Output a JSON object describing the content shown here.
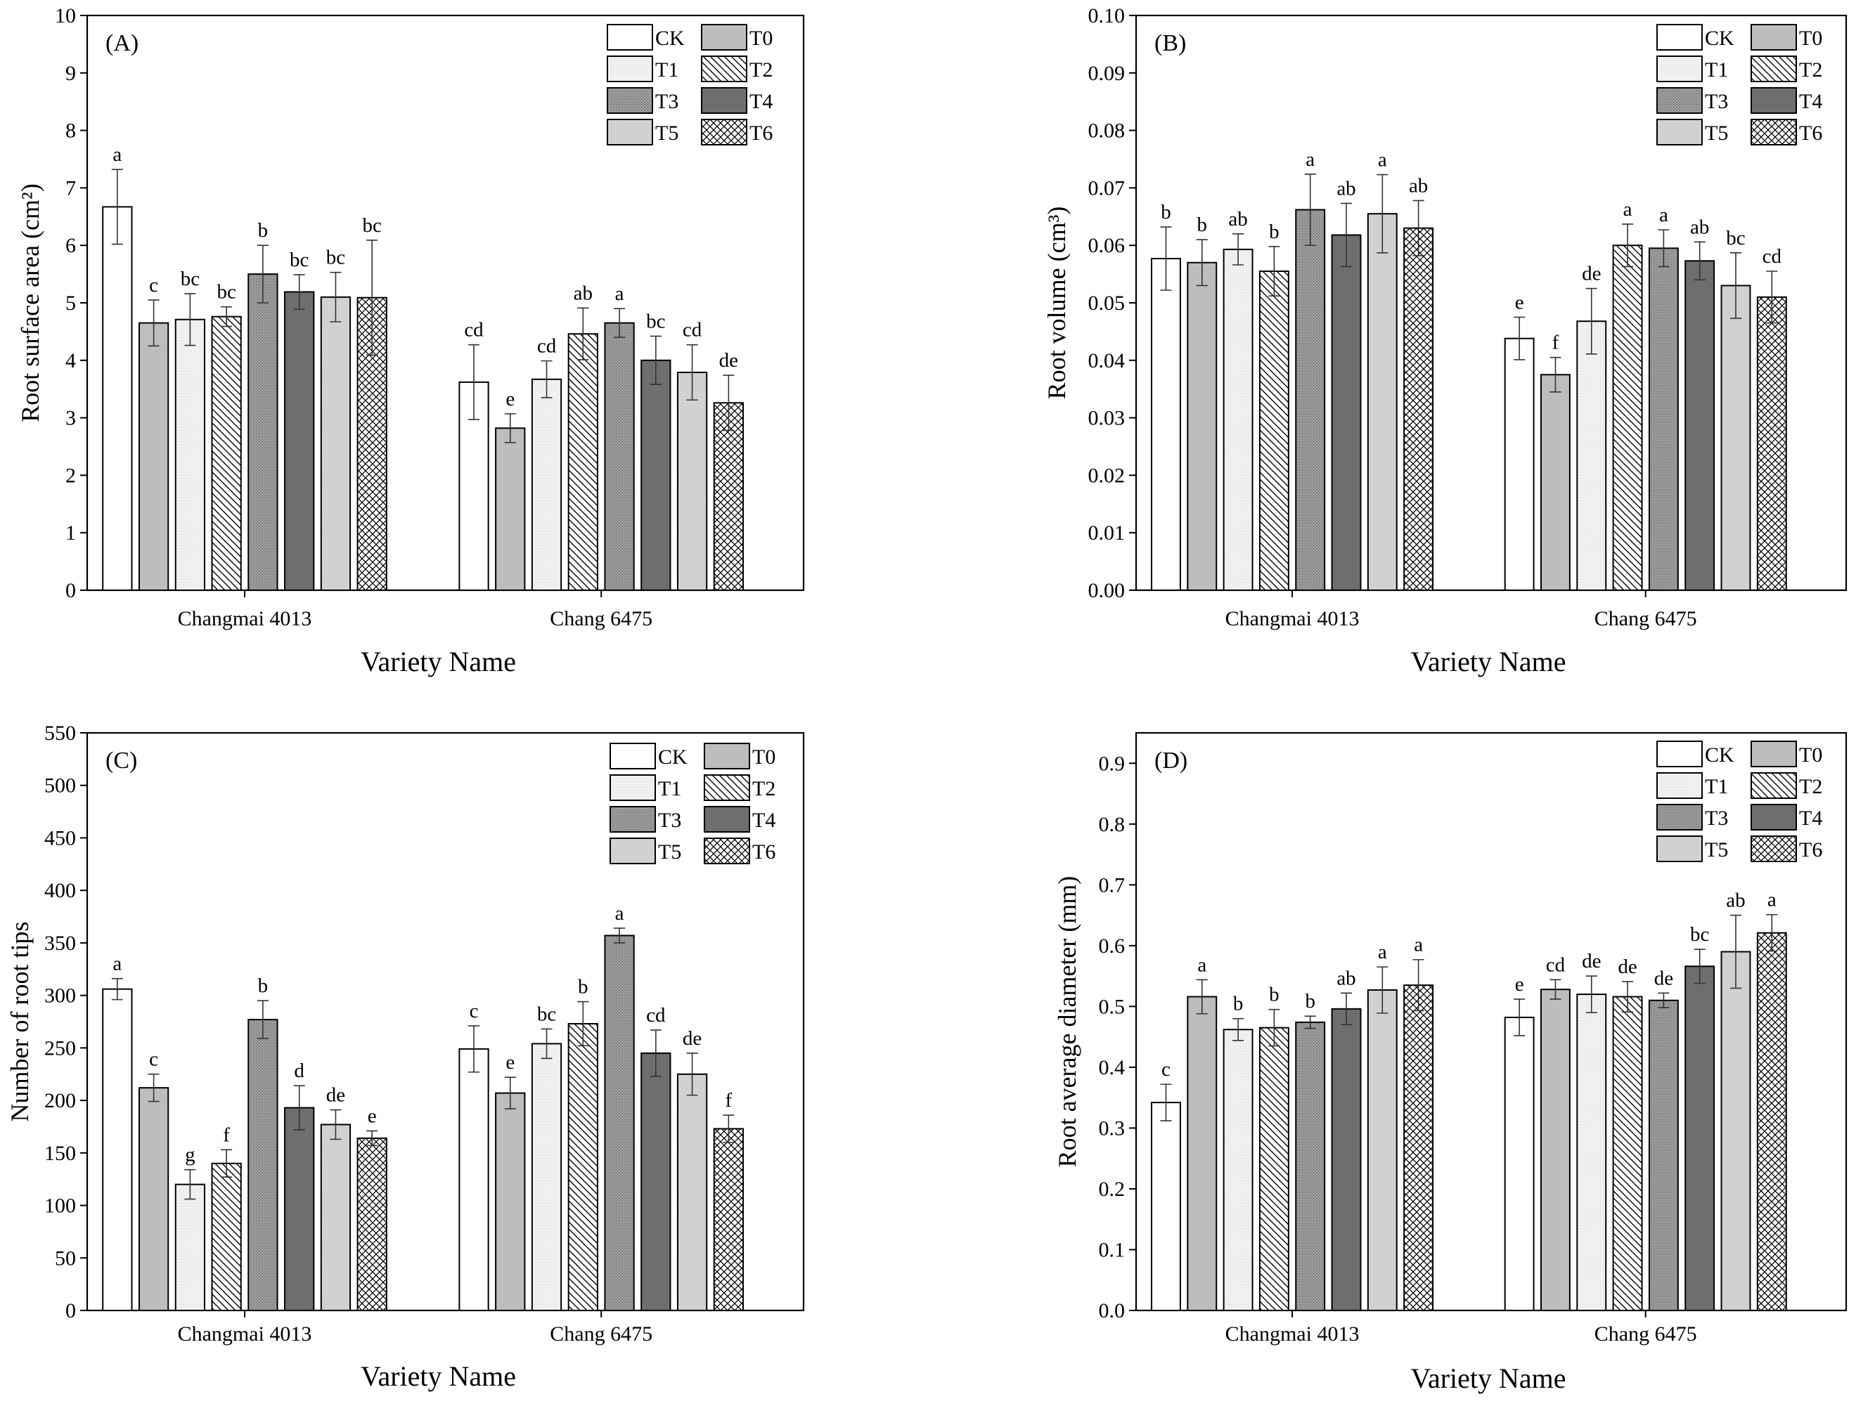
{
  "colors": {
    "CK": "#ffffff",
    "T0": "#bdbdbd",
    "T1": "#ececec",
    "T2": "#ffffff",
    "T3": "#9a9a9a",
    "T4": "#6e6e6e",
    "T5": "#cfcfcf",
    "T6": "#ffffff",
    "axis": "#000000"
  },
  "legend": [
    "CK",
    "T0",
    "T1",
    "T2",
    "T3",
    "T4",
    "T5",
    "T6"
  ],
  "chart_data": [
    {
      "type": "bar",
      "panel": "(A)",
      "ylabel": "Root surface area (cm²)",
      "xlabel": "Variety Name",
      "ylim": [
        0,
        10
      ],
      "yticks": [
        "0",
        "1",
        "2",
        "3",
        "4",
        "5",
        "6",
        "7",
        "8",
        "9",
        "10"
      ],
      "categories": [
        "Changmai 4013",
        "Chang 6475"
      ],
      "legend_position": "top-right",
      "series": [
        {
          "name": "CK",
          "values": [
            6.67,
            3.62
          ],
          "errors": [
            0.65,
            0.65
          ],
          "letters": [
            "a",
            "cd"
          ]
        },
        {
          "name": "T0",
          "values": [
            4.65,
            2.82
          ],
          "errors": [
            0.4,
            0.25
          ],
          "letters": [
            "c",
            "e"
          ]
        },
        {
          "name": "T1",
          "values": [
            4.71,
            3.67
          ],
          "errors": [
            0.45,
            0.32
          ],
          "letters": [
            "bc",
            "cd"
          ]
        },
        {
          "name": "T2",
          "values": [
            4.76,
            4.46
          ],
          "errors": [
            0.17,
            0.45
          ],
          "letters": [
            "bc",
            "ab"
          ]
        },
        {
          "name": "T3",
          "values": [
            5.5,
            4.65
          ],
          "errors": [
            0.5,
            0.25
          ],
          "letters": [
            "b",
            "a"
          ]
        },
        {
          "name": "T4",
          "values": [
            5.19,
            4.0
          ],
          "errors": [
            0.3,
            0.42
          ],
          "letters": [
            "bc",
            "bc"
          ]
        },
        {
          "name": "T5",
          "values": [
            5.1,
            3.79
          ],
          "errors": [
            0.43,
            0.48
          ],
          "letters": [
            "bc",
            "cd"
          ]
        },
        {
          "name": "T6",
          "values": [
            5.09,
            3.26
          ],
          "errors": [
            1.0,
            0.48
          ],
          "letters": [
            "bc",
            "de"
          ]
        }
      ]
    },
    {
      "type": "bar",
      "panel": "(B)",
      "ylabel": "Root volume (cm³)",
      "xlabel": "Variety Name",
      "ylim": [
        0,
        0.1
      ],
      "yticks": [
        "0.00",
        "0.01",
        "0.02",
        "0.03",
        "0.04",
        "0.05",
        "0.06",
        "0.07",
        "0.08",
        "0.09",
        "0.10"
      ],
      "categories": [
        "Changmai 4013",
        "Chang 6475"
      ],
      "legend_position": "top-right",
      "series": [
        {
          "name": "CK",
          "values": [
            0.0577,
            0.0438
          ],
          "errors": [
            0.0055,
            0.0037
          ],
          "letters": [
            "b",
            "e"
          ]
        },
        {
          "name": "T0",
          "values": [
            0.057,
            0.0375
          ],
          "errors": [
            0.004,
            0.003
          ],
          "letters": [
            "b",
            "f"
          ]
        },
        {
          "name": "T1",
          "values": [
            0.0593,
            0.0468
          ],
          "errors": [
            0.0027,
            0.0057
          ],
          "letters": [
            "ab",
            "de"
          ]
        },
        {
          "name": "T2",
          "values": [
            0.0555,
            0.06
          ],
          "errors": [
            0.0043,
            0.0037
          ],
          "letters": [
            "b",
            "a"
          ]
        },
        {
          "name": "T3",
          "values": [
            0.0662,
            0.0595
          ],
          "errors": [
            0.0062,
            0.0032
          ],
          "letters": [
            "a",
            "a"
          ]
        },
        {
          "name": "T4",
          "values": [
            0.0618,
            0.0573
          ],
          "errors": [
            0.0055,
            0.0033
          ],
          "letters": [
            "ab",
            "ab"
          ]
        },
        {
          "name": "T5",
          "values": [
            0.0655,
            0.053
          ],
          "errors": [
            0.0068,
            0.0057
          ],
          "letters": [
            "a",
            "bc"
          ]
        },
        {
          "name": "T6",
          "values": [
            0.063,
            0.051
          ],
          "errors": [
            0.0048,
            0.0045
          ],
          "letters": [
            "ab",
            "cd"
          ]
        }
      ]
    },
    {
      "type": "bar",
      "panel": "(C)",
      "ylabel": "Number of root tips",
      "xlabel": "Variety Name",
      "ylim": [
        0,
        550
      ],
      "yticks": [
        "0",
        "50",
        "100",
        "150",
        "200",
        "250",
        "300",
        "350",
        "400",
        "450",
        "500",
        "550"
      ],
      "categories": [
        "Changmai 4013",
        "Chang 6475"
      ],
      "legend_position": "top-right",
      "series": [
        {
          "name": "CK",
          "values": [
            306,
            249
          ],
          "errors": [
            10,
            22
          ],
          "letters": [
            "a",
            "c"
          ]
        },
        {
          "name": "T0",
          "values": [
            212,
            207
          ],
          "errors": [
            13,
            15
          ],
          "letters": [
            "c",
            "e"
          ]
        },
        {
          "name": "T1",
          "values": [
            120,
            254
          ],
          "errors": [
            14,
            14
          ],
          "letters": [
            "g",
            "bc"
          ]
        },
        {
          "name": "T2",
          "values": [
            140,
            273
          ],
          "errors": [
            13,
            21
          ],
          "letters": [
            "f",
            "b"
          ]
        },
        {
          "name": "T3",
          "values": [
            277,
            357
          ],
          "errors": [
            18,
            7
          ],
          "letters": [
            "b",
            "a"
          ]
        },
        {
          "name": "T4",
          "values": [
            193,
            245
          ],
          "errors": [
            21,
            22
          ],
          "letters": [
            "d",
            "cd"
          ]
        },
        {
          "name": "T5",
          "values": [
            177,
            225
          ],
          "errors": [
            14,
            20
          ],
          "letters": [
            "de",
            "de"
          ]
        },
        {
          "name": "T6",
          "values": [
            164,
            173
          ],
          "errors": [
            7,
            13
          ],
          "letters": [
            "e",
            "f"
          ]
        }
      ]
    },
    {
      "type": "bar",
      "panel": "(D)",
      "ylabel": "Root average diameter (mm)",
      "xlabel": "Variety Name",
      "ylim": [
        0,
        0.95
      ],
      "yticks": [
        "0.0",
        "0.1",
        "0.2",
        "0.3",
        "0.4",
        "0.5",
        "0.6",
        "0.7",
        "0.8",
        "0.9"
      ],
      "categories": [
        "Changmai 4013",
        "Chang 6475"
      ],
      "legend_position": "top-right",
      "series": [
        {
          "name": "CK",
          "values": [
            0.342,
            0.482
          ],
          "errors": [
            0.03,
            0.03
          ],
          "letters": [
            "c",
            "e"
          ]
        },
        {
          "name": "T0",
          "values": [
            0.516,
            0.528
          ],
          "errors": [
            0.028,
            0.016
          ],
          "letters": [
            "a",
            "cd"
          ]
        },
        {
          "name": "T1",
          "values": [
            0.462,
            0.52
          ],
          "errors": [
            0.018,
            0.03
          ],
          "letters": [
            "b",
            "de"
          ]
        },
        {
          "name": "T2",
          "values": [
            0.465,
            0.516
          ],
          "errors": [
            0.03,
            0.025
          ],
          "letters": [
            "b",
            "de"
          ]
        },
        {
          "name": "T3",
          "values": [
            0.474,
            0.51
          ],
          "errors": [
            0.01,
            0.012
          ],
          "letters": [
            "b",
            "de"
          ]
        },
        {
          "name": "T4",
          "values": [
            0.496,
            0.566
          ],
          "errors": [
            0.026,
            0.028
          ],
          "letters": [
            "ab",
            "bc"
          ]
        },
        {
          "name": "T5",
          "values": [
            0.527,
            0.59
          ],
          "errors": [
            0.038,
            0.06
          ],
          "letters": [
            "a",
            "ab"
          ]
        },
        {
          "name": "T6",
          "values": [
            0.535,
            0.621
          ],
          "errors": [
            0.042,
            0.03
          ],
          "letters": [
            "a",
            "a"
          ]
        }
      ]
    }
  ]
}
